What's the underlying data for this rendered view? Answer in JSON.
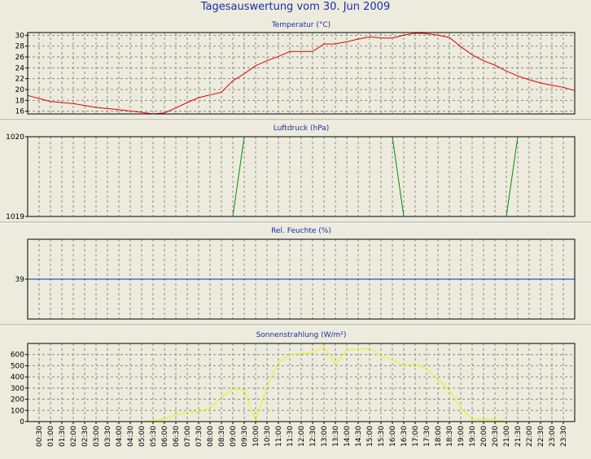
{
  "title": "Tagesauswertung vom 30. Jun 2009",
  "chart_data": [
    {
      "type": "line",
      "title": "Temperatur (°C)",
      "color": "#e00000",
      "ylim": [
        15.5,
        30.5
      ],
      "yticks": [
        "16",
        "18",
        "20",
        "22",
        "24",
        "26",
        "28",
        "30"
      ],
      "hgrid": true,
      "series": [
        {
          "x": [
            0,
            1,
            2,
            3,
            4,
            5,
            5.5,
            6,
            6.5,
            7,
            7.5,
            8,
            8.5,
            9,
            9.5,
            10,
            10.5,
            11,
            11.5,
            12,
            12.5,
            13,
            13.5,
            14,
            14.5,
            15,
            15.5,
            16,
            16.5,
            17,
            17.5,
            18,
            18.5,
            19,
            19.5,
            20,
            20.5,
            21,
            21.5,
            22,
            22.5,
            23,
            23.5,
            24
          ],
          "y": [
            18.9,
            17.8,
            17.4,
            16.7,
            16.3,
            15.8,
            15.5,
            15.7,
            16.6,
            17.6,
            18.5,
            19.0,
            19.5,
            21.6,
            22.9,
            24.4,
            25.3,
            26.1,
            27.0,
            27.0,
            27.0,
            28.4,
            28.4,
            28.8,
            29.3,
            29.7,
            29.5,
            29.5,
            30.0,
            30.4,
            30.3,
            30.0,
            29.6,
            27.9,
            26.4,
            25.3,
            24.5,
            23.4,
            22.5,
            21.8,
            21.2,
            20.8,
            20.4,
            19.8
          ]
        }
      ]
    },
    {
      "type": "line",
      "title": "Luftdruck (hPa)",
      "color": "#0a8a0a",
      "ylim": [
        1019,
        1020
      ],
      "yticks": [
        "1019",
        "1020"
      ],
      "hgrid": false,
      "series": [
        {
          "x": [
            0,
            9,
            9.5,
            16,
            16.5,
            21,
            21.5,
            24
          ],
          "y": [
            1019,
            1019,
            1020,
            1020,
            1019,
            1019,
            1020,
            1020
          ]
        }
      ]
    },
    {
      "type": "line",
      "title": "Rel. Feuchte (%)",
      "color": "#1030c0",
      "ylim": [
        38,
        40
      ],
      "yticks": [
        "39"
      ],
      "hgrid": false,
      "series": [
        {
          "x": [
            0,
            24
          ],
          "y": [
            39,
            39
          ]
        }
      ]
    },
    {
      "type": "line",
      "title": "Sonnenstrahlung (W/m²)",
      "color": "#f2f200",
      "ylim": [
        0,
        700
      ],
      "yticks": [
        "0",
        "100",
        "200",
        "300",
        "400",
        "500",
        "600"
      ],
      "hgrid": true,
      "series": [
        {
          "x": [
            0,
            5,
            5.5,
            6,
            6.5,
            7,
            7.5,
            8,
            8.5,
            9,
            9.5,
            10,
            10.5,
            11,
            11.5,
            12,
            12.5,
            13,
            13.5,
            14,
            14.5,
            15,
            15.5,
            16,
            16.5,
            17,
            17.5,
            18,
            18.5,
            19,
            19.5,
            20,
            20.5,
            21
          ],
          "y": [
            0,
            0,
            5,
            25,
            60,
            80,
            90,
            120,
            220,
            290,
            280,
            10,
            310,
            530,
            600,
            610,
            615,
            675,
            510,
            640,
            645,
            660,
            590,
            555,
            500,
            520,
            470,
            380,
            280,
            120,
            20,
            20,
            15,
            0
          ]
        }
      ]
    }
  ],
  "x_ticks": [
    "00:30",
    "01:00",
    "01:30",
    "02:00",
    "02:30",
    "03:00",
    "03:30",
    "04:00",
    "04:30",
    "05:00",
    "05:30",
    "06:00",
    "06:30",
    "07:00",
    "07:30",
    "08:00",
    "08:30",
    "09:00",
    "09:30",
    "10:00",
    "10:30",
    "11:00",
    "11:30",
    "12:00",
    "12:30",
    "13:00",
    "13:30",
    "14:00",
    "14:30",
    "15:00",
    "15:30",
    "16:00",
    "16:30",
    "17:00",
    "17:30",
    "18:00",
    "18:30",
    "19:00",
    "19:30",
    "20:00",
    "20:30",
    "21:00",
    "21:30",
    "22:00",
    "22:30",
    "23:00",
    "23:30"
  ]
}
